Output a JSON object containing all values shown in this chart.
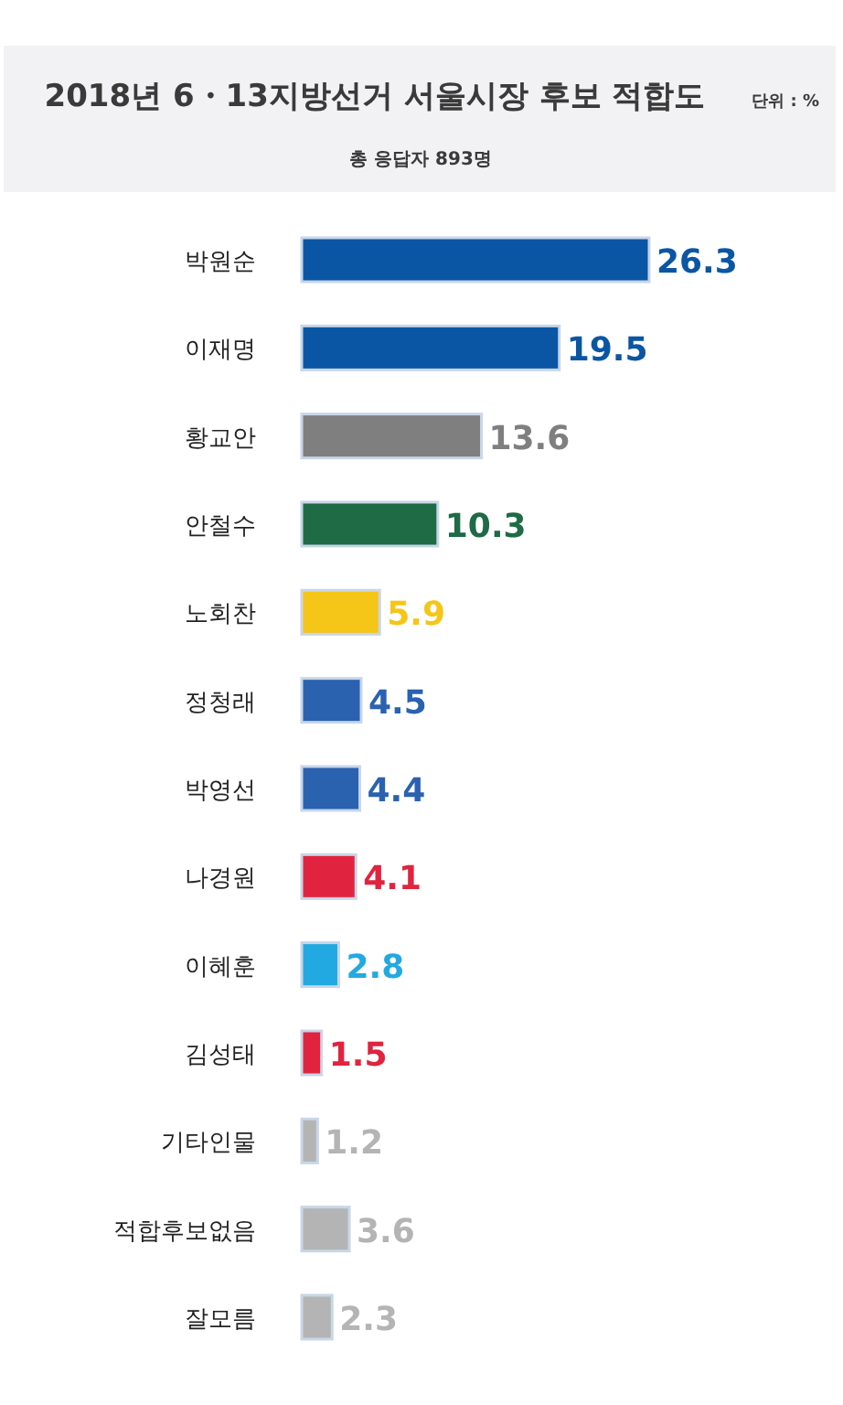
{
  "chart_data": {
    "type": "bar",
    "orientation": "horizontal",
    "title": "2018년 6・13지방선거 서울시장 후보 적합도",
    "subtitle": "총 응답자 893명",
    "annotations": [
      "단위 : %"
    ],
    "categories": [
      "박원순",
      "이재명",
      "황교안",
      "안철수",
      "노회찬",
      "정청래",
      "박영선",
      "나경원",
      "이혜훈",
      "김성태",
      "기타인물",
      "적합후보없음",
      "잘모름"
    ],
    "values": [
      26.3,
      19.5,
      13.6,
      10.3,
      5.9,
      4.5,
      4.4,
      4.1,
      2.8,
      1.5,
      1.2,
      3.6,
      2.3
    ],
    "colors": [
      "#0b56a4",
      "#0b56a4",
      "#7f7f7f",
      "#1e6b45",
      "#f5c518",
      "#2b62b0",
      "#2b62b0",
      "#e0243f",
      "#23a9e1",
      "#e0243f",
      "#b4b4b4",
      "#b4b4b4",
      "#b4b4b4"
    ],
    "data_labels": true
  }
}
